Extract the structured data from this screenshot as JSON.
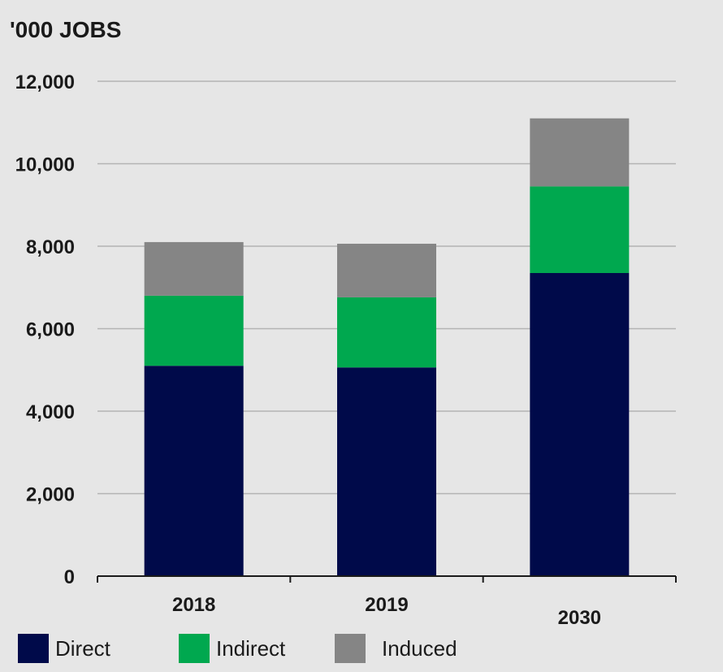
{
  "chart_data": {
    "type": "bar",
    "stacked": true,
    "unit_label": "'000 JOBS",
    "categories": [
      "2018",
      "2019",
      "2030"
    ],
    "series": [
      {
        "name": "Direct",
        "color": "#000a4a",
        "values": [
          5100,
          5060,
          7350
        ]
      },
      {
        "name": "Indirect",
        "color": "#00a84f",
        "values": [
          1700,
          1700,
          2100
        ]
      },
      {
        "name": "Induced",
        "color": "#858585",
        "values": [
          1300,
          1300,
          1650
        ]
      }
    ],
    "ylim": [
      0,
      12000
    ],
    "yticks": [
      "0",
      "2,000",
      "4,000",
      "6,000",
      "8,000",
      "10,000",
      "12,000"
    ],
    "ytick_values": [
      0,
      2000,
      4000,
      6000,
      8000,
      10000,
      12000
    ],
    "grid": true,
    "legend_position": "bottom-left",
    "background": "#e6e6e6",
    "grid_color": "#b3b3b3"
  }
}
